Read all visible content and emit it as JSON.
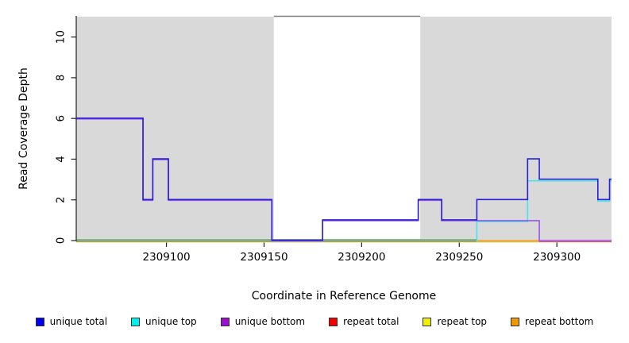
{
  "chart_data": {
    "type": "line-step",
    "title": "",
    "xlabel": "Coordinate in Reference Genome",
    "ylabel": "Read Coverage Depth",
    "xlim": [
      2309054,
      2309328
    ],
    "ylim": [
      0,
      11
    ],
    "xticks": [
      2309100,
      2309150,
      2309200,
      2309250,
      2309300
    ],
    "yticks": [
      0,
      2,
      4,
      6,
      8,
      10
    ],
    "grid": false,
    "panel_color": "#d9d9d9",
    "axis_color": "#222222",
    "shaded_regions": [
      {
        "from": 2309054,
        "to": 2309155
      },
      {
        "from": 2309230,
        "to": 2309328
      }
    ],
    "uncovered_gap": {
      "from": 2309155,
      "to": 2309230,
      "top_line_color": "#7f7f7f"
    },
    "series": [
      {
        "name": "unique total",
        "color": "#0000ee",
        "steps": [
          [
            2309054,
            6
          ],
          [
            2309088,
            2
          ],
          [
            2309093,
            4
          ],
          [
            2309101,
            2
          ],
          [
            2309154,
            0
          ],
          [
            2309180,
            1
          ],
          [
            2309229,
            2
          ],
          [
            2309241,
            1
          ],
          [
            2309259,
            2
          ],
          [
            2309285,
            4
          ],
          [
            2309291,
            3
          ],
          [
            2309321,
            2
          ],
          [
            2309327,
            3
          ],
          [
            2309328,
            3
          ]
        ]
      },
      {
        "name": "unique top",
        "color": "#00eeee",
        "steps": [
          [
            2309054,
            0
          ],
          [
            2309259,
            1
          ],
          [
            2309285,
            3
          ],
          [
            2309321,
            2
          ],
          [
            2309327,
            3
          ],
          [
            2309328,
            3
          ]
        ]
      },
      {
        "name": "unique bottom",
        "color": "#9911cc",
        "steps": [
          [
            2309054,
            6
          ],
          [
            2309088,
            2
          ],
          [
            2309093,
            4
          ],
          [
            2309101,
            2
          ],
          [
            2309154,
            0
          ],
          [
            2309180,
            1
          ],
          [
            2309229,
            2
          ],
          [
            2309241,
            1
          ],
          [
            2309291,
            0
          ],
          [
            2309328,
            0
          ]
        ]
      },
      {
        "name": "repeat total",
        "color": "#ee0000",
        "steps": [
          [
            2309054,
            0
          ],
          [
            2309328,
            0
          ]
        ]
      },
      {
        "name": "repeat top",
        "color": "#eeee00",
        "steps": [
          [
            2309054,
            0
          ],
          [
            2309328,
            0
          ]
        ]
      },
      {
        "name": "repeat bottom",
        "color": "#ee9900",
        "steps": [
          [
            2309054,
            0
          ],
          [
            2309328,
            0
          ]
        ]
      }
    ],
    "rendered_lines": [
      {
        "name": "repeat-top-line",
        "color": "#dddd77",
        "dy": 1.8,
        "w": 1.4,
        "steps": [
          [
            2309054,
            0
          ],
          [
            2309328,
            0
          ]
        ]
      },
      {
        "name": "repeat-total-line",
        "color": "#dd2244",
        "dy": 1.0,
        "w": 1.5,
        "steps": [
          [
            2309291,
            0
          ],
          [
            2309328,
            0
          ]
        ]
      },
      {
        "name": "repeat-bottom-line",
        "color": "#ff9911",
        "dy": 0.4,
        "w": 1.8,
        "steps": [
          [
            2309259,
            0
          ],
          [
            2309291,
            0
          ]
        ]
      },
      {
        "name": "unique-top-baseline-blend",
        "color": "#77bb77",
        "dy": -1.2,
        "w": 1.6,
        "steps": [
          [
            2309054,
            0
          ],
          [
            2309259,
            0
          ]
        ]
      },
      {
        "name": "unique-bottom-zero-fringe",
        "color": "#ee88bb",
        "dy": -0.6,
        "w": 1.2,
        "steps": [
          [
            2309291,
            0
          ],
          [
            2309328,
            0
          ]
        ]
      },
      {
        "name": "unique-top-line",
        "color": "#3ce6ee",
        "dy": 1.6,
        "w": 1.5,
        "steps": [
          [
            2309259,
            0
          ],
          [
            2309259,
            1
          ],
          [
            2309285,
            3
          ],
          [
            2309321,
            2
          ],
          [
            2309327,
            3
          ],
          [
            2309328,
            3
          ]
        ]
      },
      {
        "name": "unique-bottom-line",
        "color": "#9955ee",
        "dy": 0.6,
        "w": 1.6,
        "steps": [
          [
            2309054,
            6
          ],
          [
            2309088,
            2
          ],
          [
            2309093,
            4
          ],
          [
            2309101,
            2
          ],
          [
            2309154,
            0
          ],
          [
            2309180,
            1
          ],
          [
            2309229,
            2
          ],
          [
            2309241,
            1
          ],
          [
            2309291,
            0
          ],
          [
            2309328,
            0
          ]
        ]
      },
      {
        "name": "unique-total-line",
        "color": "#2a1fd6",
        "dy": -0.4,
        "w": 1.6,
        "steps": [
          [
            2309054,
            6
          ],
          [
            2309088,
            2
          ],
          [
            2309093,
            4
          ],
          [
            2309101,
            2
          ],
          [
            2309154,
            0
          ],
          [
            2309180,
            1
          ],
          [
            2309229,
            2
          ],
          [
            2309241,
            1
          ],
          [
            2309259,
            2
          ],
          [
            2309285,
            4
          ],
          [
            2309291,
            3
          ],
          [
            2309321,
            2
          ],
          [
            2309327,
            3
          ],
          [
            2309328,
            3
          ]
        ]
      }
    ],
    "legend": {
      "position": "bottom",
      "entries": [
        {
          "label": "unique total",
          "color": "#0000ee"
        },
        {
          "label": "unique top",
          "color": "#00eeee"
        },
        {
          "label": "unique bottom",
          "color": "#9911cc"
        },
        {
          "label": "repeat total",
          "color": "#ee0000"
        },
        {
          "label": "repeat top",
          "color": "#eeee00"
        },
        {
          "label": "repeat bottom",
          "color": "#ee9900"
        }
      ]
    }
  }
}
